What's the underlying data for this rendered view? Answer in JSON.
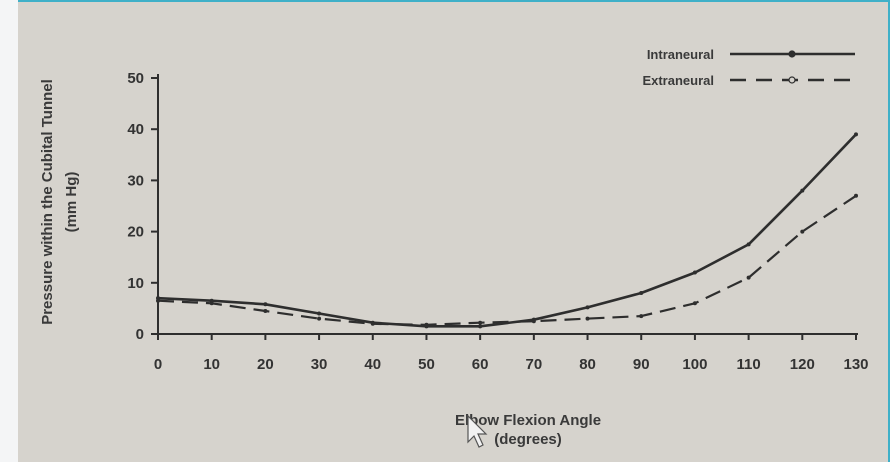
{
  "chart_data": {
    "type": "line",
    "xlabel": [
      "Elbow Flexion Angle",
      "(degrees)"
    ],
    "ylabel": [
      "Pressure within the Cubital Tunnel",
      "(mm Hg)"
    ],
    "x": [
      0,
      10,
      20,
      30,
      40,
      50,
      60,
      70,
      80,
      90,
      100,
      110,
      120,
      130
    ],
    "x_ticks": [
      "0",
      "10",
      "20",
      "30",
      "40",
      "50",
      "60",
      "70",
      "80",
      "90",
      "100",
      "110",
      "120",
      "130"
    ],
    "y_ticks": [
      "0",
      "10",
      "20",
      "30",
      "40",
      "50"
    ],
    "xlim": [
      0,
      130
    ],
    "ylim": [
      0,
      50
    ],
    "grid": false,
    "legend_position": "top-right",
    "series": [
      {
        "name": "Intraneural",
        "style": "solid",
        "values": [
          7,
          6.5,
          5.8,
          4,
          2.2,
          1.5,
          1.5,
          2.8,
          5.2,
          8,
          12,
          17.5,
          28,
          39
        ]
      },
      {
        "name": "Extraneural",
        "style": "dashed",
        "values": [
          6.5,
          6,
          4.5,
          3,
          2,
          1.8,
          2.2,
          2.5,
          3,
          3.5,
          6,
          11,
          20,
          27
        ]
      }
    ],
    "colors": {
      "line": "#2e2e2e",
      "text": "#333333",
      "background": "#d6d3cd"
    }
  }
}
